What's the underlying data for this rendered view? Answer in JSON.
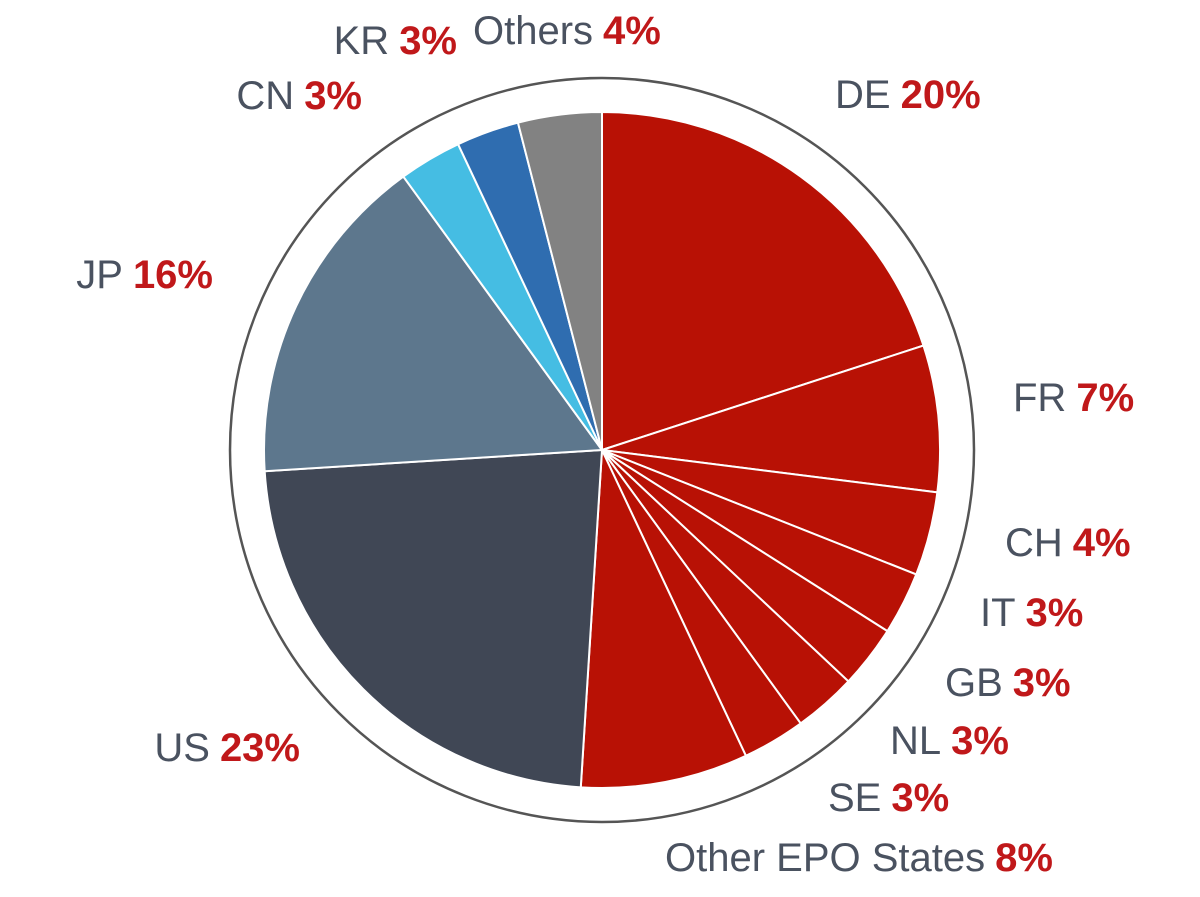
{
  "chart_data": {
    "type": "pie",
    "categories": [
      "DE",
      "FR",
      "CH",
      "IT",
      "GB",
      "NL",
      "SE",
      "Other EPO States",
      "US",
      "JP",
      "CN",
      "KR",
      "Others"
    ],
    "values": [
      20,
      7,
      4,
      3,
      3,
      3,
      3,
      8,
      23,
      16,
      3,
      3,
      4
    ],
    "value_labels": [
      "20%",
      "7%",
      "4%",
      "3%",
      "3%",
      "3%",
      "3%",
      "8%",
      "23%",
      "16%",
      "3%",
      "3%",
      "4%"
    ],
    "colors": [
      "#b81105",
      "#b81105",
      "#b81105",
      "#b81105",
      "#b81105",
      "#b81105",
      "#b81105",
      "#b81105",
      "#404755",
      "#5d778d",
      "#45bde3",
      "#2f6db0",
      "#828282"
    ]
  }
}
